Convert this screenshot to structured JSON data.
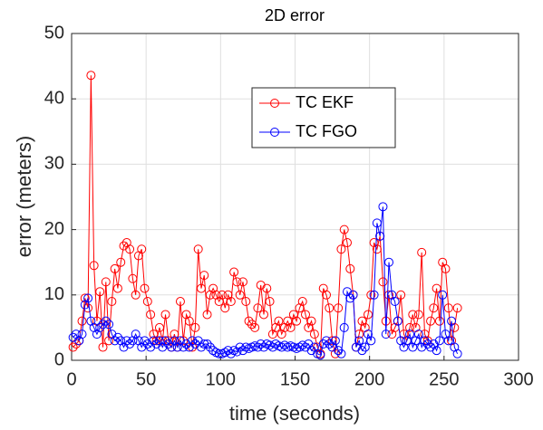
{
  "chart_data": {
    "type": "line",
    "title": "2D error",
    "xlabel": "time (seconds)",
    "ylabel": "error (meters)",
    "x": [
      1,
      3,
      5,
      7,
      9,
      11,
      13,
      15,
      17,
      19,
      21,
      23,
      25,
      27,
      29,
      31,
      33,
      35,
      37,
      39,
      41,
      43,
      45,
      47,
      49,
      51,
      53,
      55,
      57,
      59,
      61,
      63,
      65,
      67,
      69,
      71,
      73,
      75,
      77,
      79,
      81,
      83,
      85,
      87,
      89,
      91,
      93,
      95,
      97,
      99,
      101,
      103,
      105,
      107,
      109,
      111,
      113,
      115,
      117,
      119,
      121,
      123,
      125,
      127,
      129,
      131,
      133,
      135,
      137,
      139,
      141,
      143,
      145,
      147,
      149,
      151,
      153,
      155,
      157,
      159,
      161,
      163,
      165,
      167,
      169,
      171,
      173,
      175,
      177,
      179,
      181,
      183,
      185,
      187,
      189,
      191,
      193,
      195,
      197,
      199,
      201,
      203,
      205,
      207,
      209,
      211,
      213,
      215,
      217,
      219,
      221,
      223,
      225,
      227,
      229,
      231,
      233,
      235,
      237,
      239,
      241,
      243,
      245,
      247,
      249,
      251,
      253,
      255,
      257,
      259
    ],
    "series": [
      {
        "name": "TC EKF",
        "color": "#ff0000",
        "values": [
          2,
          2.5,
          3,
          6,
          9.5,
          8,
          43.6,
          14.5,
          6,
          10.5,
          2,
          12,
          3,
          9,
          14,
          11,
          15,
          17.5,
          18,
          17,
          12.5,
          10,
          16,
          17,
          11,
          9,
          7,
          4,
          3,
          5,
          3,
          7,
          3,
          2,
          4,
          2,
          9,
          3,
          7,
          6,
          2,
          5,
          17,
          11,
          13,
          7,
          10,
          11,
          10,
          9,
          10,
          8,
          10,
          9,
          13.5,
          12,
          10,
          12,
          9,
          6,
          5.5,
          5,
          8,
          11.5,
          7,
          11,
          9,
          4,
          5,
          6,
          4,
          5,
          6,
          5,
          7,
          6,
          8,
          9,
          7,
          5,
          6,
          4,
          2,
          1,
          11,
          10,
          8,
          3,
          1,
          8,
          17,
          20,
          18,
          14,
          10,
          2,
          4,
          6,
          5,
          7,
          10,
          18,
          17,
          19,
          12,
          6,
          10,
          4,
          5,
          6,
          10,
          4,
          3,
          5,
          7,
          5,
          7,
          16.5,
          4,
          3,
          6,
          8,
          11,
          6,
          15,
          14,
          8,
          3,
          5,
          8
        ]
      },
      {
        "name": "TC FGO",
        "color": "#0000ff",
        "values": [
          3.5,
          4,
          3,
          4,
          8.5,
          9.5,
          6,
          5,
          4,
          5,
          5.5,
          6,
          5.5,
          4,
          3,
          3.5,
          3,
          2,
          3,
          2.5,
          3,
          4,
          3,
          2,
          3,
          2.5,
          2,
          3,
          2.5,
          3,
          2,
          3,
          2.5,
          2,
          3,
          2,
          3,
          2,
          2.5,
          2,
          3,
          2.5,
          3,
          2,
          2.5,
          2.5,
          2,
          1.5,
          1.2,
          1,
          1,
          1.2,
          1.5,
          1,
          1.5,
          1.3,
          2,
          1.5,
          2,
          1.8,
          2,
          2.2,
          2,
          2.5,
          2,
          2.5,
          2.3,
          2,
          2.5,
          2.2,
          2,
          2.3,
          2,
          2.2,
          2,
          1.8,
          2,
          2.3,
          2,
          2.5,
          1.5,
          2,
          1,
          0.8,
          2.5,
          3,
          2.5,
          2,
          3,
          1.5,
          1,
          5,
          10.5,
          9.5,
          10,
          2,
          3,
          1.5,
          2,
          4,
          3,
          10,
          21,
          19,
          23.5,
          4,
          15,
          10,
          9,
          6,
          3,
          2,
          3,
          4,
          2,
          3,
          4,
          2,
          3,
          2.5,
          2,
          2.5,
          1.5,
          3,
          10,
          4,
          3,
          6,
          2,
          1
        ]
      }
    ],
    "xlim": [
      0,
      300
    ],
    "xticks": [
      0,
      50,
      100,
      150,
      200,
      250,
      300
    ],
    "ylim": [
      0,
      50
    ],
    "yticks": [
      0,
      10,
      20,
      30,
      40,
      50
    ],
    "grid": true,
    "legend_loc": "upper center"
  }
}
